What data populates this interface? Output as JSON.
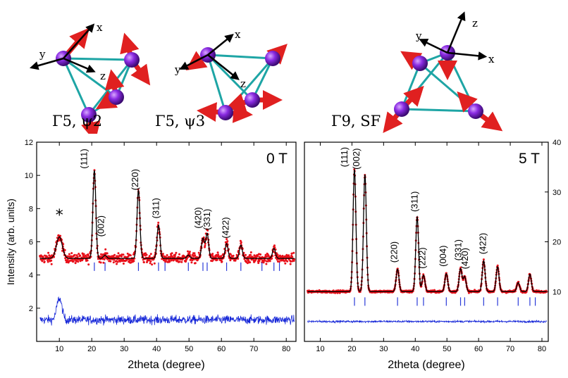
{
  "configurations": [
    {
      "label": "Γ5, ψ2"
    },
    {
      "label": "Γ5, ψ3"
    },
    {
      "label": "Γ9, SF"
    }
  ],
  "axis_letters": {
    "x": "x",
    "y": "y",
    "z": "z"
  },
  "colors": {
    "atom": "#7b22c9",
    "bond": "#1ea5a5",
    "spin": "#e02020",
    "observed": "#e8101a",
    "calculated": "#000000",
    "difference": "#1526d8",
    "bragg": "#2a3ad8"
  },
  "chart_data": [
    {
      "type": "scatter",
      "panel": "left",
      "field_label": "0 T",
      "xlabel": "2theta (degree)",
      "ylabel": "Intensity (arb. units)",
      "xlim": [
        3,
        83
      ],
      "ylim": [
        0,
        12
      ],
      "xticks": [
        10,
        20,
        30,
        40,
        50,
        60,
        70,
        80
      ],
      "yticks": [
        2,
        4,
        6,
        8,
        10,
        12
      ],
      "baseline": 5.0,
      "peaks": [
        {
          "x": 20.8,
          "height": 10.3
        },
        {
          "x": 24.1,
          "height": 5.2
        },
        {
          "x": 34.4,
          "height": 9.1
        },
        {
          "x": 40.6,
          "height": 7.0
        },
        {
          "x": 49.8,
          "height": 5.2
        },
        {
          "x": 54.3,
          "height": 6.2
        },
        {
          "x": 55.6,
          "height": 6.5
        },
        {
          "x": 61.6,
          "height": 5.9
        },
        {
          "x": 66.0,
          "height": 5.8
        },
        {
          "x": 76.2,
          "height": 5.6
        }
      ],
      "impurity": {
        "x": 10.0,
        "height": 6.3,
        "label": "*"
      },
      "bragg_positions": [
        20.8,
        24.1,
        34.4,
        40.6,
        42.6,
        49.8,
        54.3,
        55.6,
        61.6,
        66.0,
        72.5,
        76.2,
        77.9
      ],
      "bragg_level": 4.5,
      "difference_offset": 1.3,
      "miller_labels": [
        {
          "text": "(111)",
          "x": 18.6,
          "y": 10.4
        },
        {
          "text": "(002)",
          "x": 23.8,
          "y": 6.3
        },
        {
          "text": "(220)",
          "x": 34.3,
          "y": 9.1
        },
        {
          "text": "(311)",
          "x": 40.7,
          "y": 7.4
        },
        {
          "text": "(420)",
          "x": 53.8,
          "y": 6.8
        },
        {
          "text": "(331)",
          "x": 56.5,
          "y": 6.7
        },
        {
          "text": "(422)",
          "x": 62.2,
          "y": 6.2
        }
      ]
    },
    {
      "type": "scatter",
      "panel": "right",
      "field_label": "5 T",
      "xlabel": "2theta (degree)",
      "ylabel": "",
      "xlim": [
        5,
        82
      ],
      "ylim": [
        0,
        40
      ],
      "xticks": [
        10,
        20,
        30,
        40,
        50,
        60,
        70,
        80
      ],
      "yticks": [
        10,
        20,
        30,
        40
      ],
      "baseline": 10.0,
      "peaks": [
        {
          "x": 20.8,
          "height": 34.5
        },
        {
          "x": 24.1,
          "height": 33.5
        },
        {
          "x": 34.4,
          "height": 14.5
        },
        {
          "x": 40.6,
          "height": 25.0
        },
        {
          "x": 42.6,
          "height": 13.3
        },
        {
          "x": 49.8,
          "height": 13.6
        },
        {
          "x": 54.3,
          "height": 14.6
        },
        {
          "x": 55.6,
          "height": 13.0
        },
        {
          "x": 61.6,
          "height": 16.2
        },
        {
          "x": 66.0,
          "height": 15.0
        },
        {
          "x": 72.5,
          "height": 11.8
        },
        {
          "x": 76.2,
          "height": 13.5
        }
      ],
      "bragg_positions": [
        20.8,
        24.1,
        34.4,
        40.6,
        42.6,
        49.8,
        54.3,
        55.6,
        61.6,
        66.0,
        72.5,
        76.2,
        77.9
      ],
      "bragg_level": 8.0,
      "difference_offset": 4.0,
      "miller_labels": [
        {
          "text": "(111)",
          "x": 18.6,
          "y": 35.0
        },
        {
          "text": "(002)",
          "x": 22.4,
          "y": 34.5
        },
        {
          "text": "(220)",
          "x": 34.3,
          "y": 15.8
        },
        {
          "text": "(311)",
          "x": 40.7,
          "y": 26.0
        },
        {
          "text": "(222)",
          "x": 43.2,
          "y": 14.6
        },
        {
          "text": "(004)",
          "x": 49.7,
          "y": 15.0
        },
        {
          "text": "(331)",
          "x": 54.5,
          "y": 16.2
        },
        {
          "text": "(420)",
          "x": 56.6,
          "y": 14.5
        },
        {
          "text": "(422)",
          "x": 62.3,
          "y": 17.5
        }
      ]
    }
  ]
}
